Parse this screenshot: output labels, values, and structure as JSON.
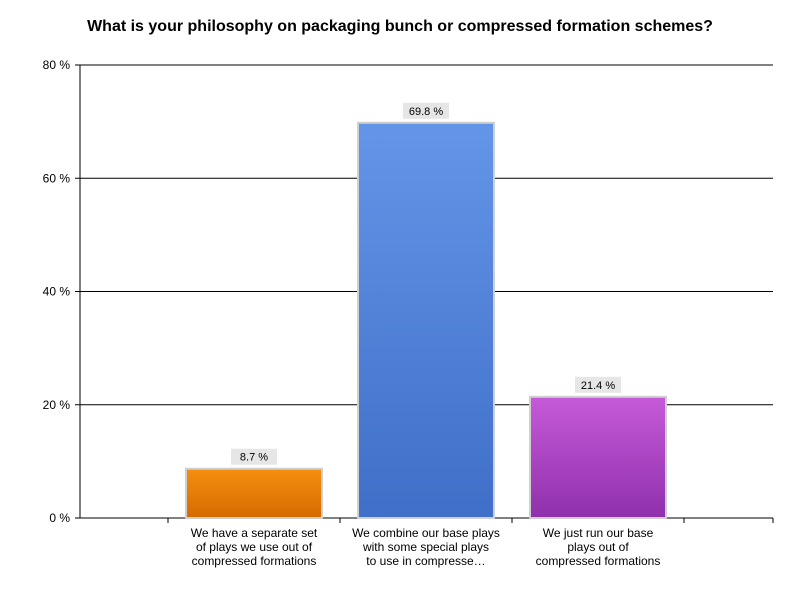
{
  "chart_data": {
    "type": "bar",
    "title": "What is your philosophy on packaging bunch or compressed formation schemes?",
    "xlabel": "",
    "ylabel": "",
    "ylim": [
      0,
      80
    ],
    "yticks": [
      0,
      20,
      40,
      60,
      80
    ],
    "ytick_labels": [
      "0 %",
      "20 %",
      "40 %",
      "60 %",
      "80 %"
    ],
    "categories": [
      "We have a separate set of plays we use out of compressed formations",
      "We combine our base plays with some special plays to use in compresse…",
      "We just run our base plays out of compressed formations"
    ],
    "category_lines": [
      [
        "We have a separate set",
        "of plays we use out of",
        "compressed formations"
      ],
      [
        "We combine our base plays",
        "with some special plays",
        "to use in compresse…"
      ],
      [
        "We just run our base",
        "plays out of",
        "compressed formations"
      ]
    ],
    "values": [
      8.7,
      69.8,
      21.4
    ],
    "data_labels": [
      "8.7 %",
      "69.8 %",
      "21.4 %"
    ],
    "bar_colors": [
      [
        "#f5900f",
        "#d56a00"
      ],
      [
        "#6395e8",
        "#3f6fc8"
      ],
      [
        "#c65ad8",
        "#8f30ad"
      ]
    ],
    "grid": true,
    "legend": "none"
  }
}
